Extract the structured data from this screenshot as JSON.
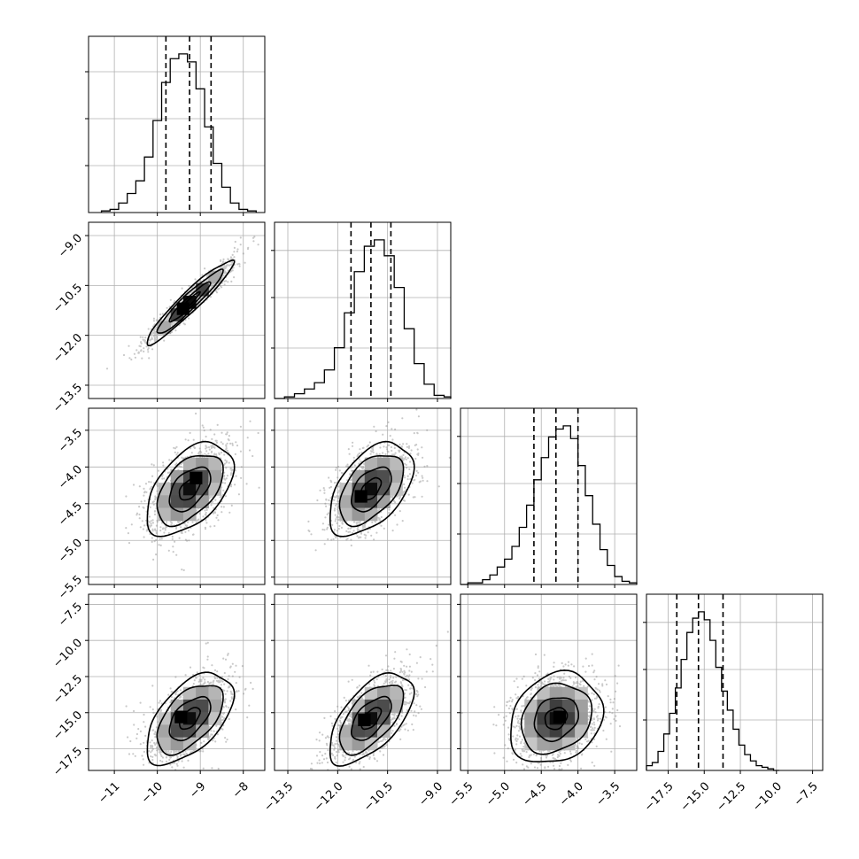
{
  "chart_data": {
    "type": "corner",
    "parameters": 4,
    "axes_ranges": [
      [
        -11.6,
        -7.5
      ],
      [
        -13.9,
        -8.6
      ],
      [
        -5.6,
        -3.2
      ],
      [
        -19.0,
        -6.8
      ]
    ],
    "x_tick_labels": [
      [
        "−11",
        "−10",
        "−9",
        "−8"
      ],
      [
        "−13.5",
        "−12.0",
        "−10.5",
        "−9.0"
      ],
      [
        "−5.5",
        "−5.0",
        "−4.5",
        "−4.0",
        "−3.5"
      ],
      [
        "−17.5",
        "−15.0",
        "−12.5",
        "−10.0",
        "−7.5"
      ]
    ],
    "y_tick_labels": [
      [],
      [
        "−9.0",
        "−10.5",
        "−12.0",
        "−13.5"
      ],
      [
        "−3.5",
        "−4.0",
        "−4.5",
        "−5.0",
        "−5.5"
      ],
      [
        "−7.5",
        "−10.0",
        "−12.5",
        "−15.0",
        "−17.5"
      ]
    ],
    "x_ticks": [
      [
        -11,
        -10,
        -9,
        -8
      ],
      [
        -13.5,
        -12.0,
        -10.5,
        -9.0
      ],
      [
        -5.5,
        -5.0,
        -4.5,
        -4.0,
        -3.5
      ],
      [
        -17.5,
        -15.0,
        -12.5,
        -10.0,
        -7.5
      ]
    ],
    "y_ticks": [
      [],
      [
        -9.0,
        -10.5,
        -12.0,
        -13.5
      ],
      [
        -3.5,
        -4.0,
        -4.5,
        -5.0,
        -5.5
      ],
      [
        -7.5,
        -10.0,
        -12.5,
        -15.0,
        -17.5
      ]
    ],
    "marginals": [
      {
        "param": 0,
        "quantiles": [
          -9.8,
          -9.25,
          -8.75
        ],
        "bins": [
          -11.3,
          -11.1,
          -10.9,
          -10.7,
          -10.5,
          -10.3,
          -10.1,
          -9.9,
          -9.7,
          -9.5,
          -9.3,
          -9.1,
          -8.9,
          -8.7,
          -8.5,
          -8.3,
          -8.1,
          -7.9,
          -7.7
        ],
        "counts": [
          0.01,
          0.02,
          0.06,
          0.12,
          0.2,
          0.35,
          0.58,
          0.82,
          0.97,
          1.0,
          0.95,
          0.78,
          0.54,
          0.31,
          0.16,
          0.06,
          0.02,
          0.01
        ]
      },
      {
        "param": 1,
        "quantiles": [
          -11.6,
          -11.0,
          -10.4
        ],
        "bins": [
          -13.9,
          -13.6,
          -13.3,
          -13.0,
          -12.7,
          -12.4,
          -12.1,
          -11.8,
          -11.5,
          -11.2,
          -10.9,
          -10.6,
          -10.3,
          -10.0,
          -9.7,
          -9.4,
          -9.1,
          -8.8,
          -8.6
        ],
        "counts": [
          0.0,
          0.01,
          0.03,
          0.06,
          0.1,
          0.18,
          0.32,
          0.54,
          0.8,
          0.96,
          1.0,
          0.9,
          0.7,
          0.44,
          0.22,
          0.09,
          0.02,
          0.01
        ]
      },
      {
        "param": 2,
        "quantiles": [
          -4.6,
          -4.3,
          -4.0
        ],
        "bins": [
          -5.6,
          -5.5,
          -5.4,
          -5.3,
          -5.2,
          -5.1,
          -5.0,
          -4.9,
          -4.8,
          -4.7,
          -4.6,
          -4.5,
          -4.4,
          -4.3,
          -4.2,
          -4.1,
          -4.0,
          -3.9,
          -3.8,
          -3.7,
          -3.6,
          -3.5,
          -3.4,
          -3.3,
          -3.2
        ],
        "counts": [
          0.0,
          0.01,
          0.01,
          0.03,
          0.06,
          0.11,
          0.16,
          0.24,
          0.36,
          0.5,
          0.66,
          0.8,
          0.93,
          0.98,
          1.0,
          0.92,
          0.75,
          0.56,
          0.38,
          0.22,
          0.12,
          0.05,
          0.02,
          0.01
        ]
      },
      {
        "param": 3,
        "quantiles": [
          -16.9,
          -15.4,
          -13.7
        ],
        "bins": [
          -19.0,
          -18.6,
          -18.2,
          -17.8,
          -17.4,
          -17.0,
          -16.6,
          -16.2,
          -15.8,
          -15.4,
          -15.0,
          -14.6,
          -14.2,
          -13.8,
          -13.4,
          -13.0,
          -12.6,
          -12.2,
          -11.8,
          -11.4,
          -11.0,
          -10.6,
          -10.2,
          -9.8
        ],
        "counts": [
          0.03,
          0.05,
          0.12,
          0.23,
          0.36,
          0.52,
          0.7,
          0.87,
          0.96,
          1.0,
          0.95,
          0.82,
          0.65,
          0.5,
          0.38,
          0.26,
          0.16,
          0.1,
          0.06,
          0.03,
          0.02,
          0.01,
          0.0
        ]
      }
    ],
    "pairs": [
      {
        "x_param": 0,
        "y_param": 1,
        "mean": [
          -9.25,
          -11.0
        ],
        "sigma": [
          0.48,
          0.6
        ],
        "rho": 0.95,
        "peak": [
          -9.4,
          -11.2
        ]
      },
      {
        "x_param": 0,
        "y_param": 2,
        "mean": [
          -9.25,
          -4.3
        ],
        "sigma": [
          0.48,
          0.3
        ],
        "rho": 0.5,
        "peak": [
          -9.1,
          -4.15
        ]
      },
      {
        "x_param": 1,
        "y_param": 2,
        "mean": [
          -11.0,
          -4.3
        ],
        "sigma": [
          0.6,
          0.3
        ],
        "rho": 0.5,
        "peak": [
          -11.3,
          -4.4
        ]
      },
      {
        "x_param": 0,
        "y_param": 3,
        "mean": [
          -9.25,
          -15.4
        ],
        "sigma": [
          0.48,
          1.5
        ],
        "rho": 0.55,
        "peak": [
          -9.45,
          -15.3
        ]
      },
      {
        "x_param": 1,
        "y_param": 3,
        "mean": [
          -11.0,
          -15.4
        ],
        "sigma": [
          0.6,
          1.5
        ],
        "rho": 0.6,
        "peak": [
          -11.2,
          -15.5
        ]
      },
      {
        "x_param": 2,
        "y_param": 3,
        "mean": [
          -4.3,
          -15.4
        ],
        "sigma": [
          0.3,
          1.5
        ],
        "rho": 0.2,
        "peak": [
          -4.25,
          -15.3
        ]
      }
    ],
    "grid": true,
    "colors": {
      "ink": "#000000",
      "grid": "#b0b0b0",
      "points": "#8a8a8a",
      "background": "#ffffff"
    }
  }
}
